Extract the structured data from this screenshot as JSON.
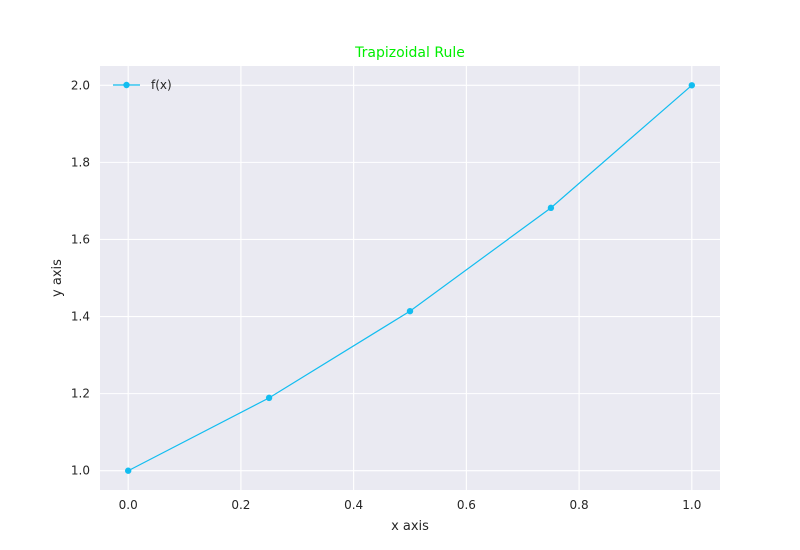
{
  "chart_data": {
    "type": "line",
    "title": "Trapizoidal Rule",
    "xlabel": "x axis",
    "ylabel": "y axis",
    "xlim": [
      -0.05,
      1.05
    ],
    "ylim": [
      0.95,
      2.05
    ],
    "xticks": [
      0.0,
      0.2,
      0.4,
      0.6,
      0.8,
      1.0
    ],
    "xtick_labels": [
      "0.0",
      "0.2",
      "0.4",
      "0.6",
      "0.8",
      "1.0"
    ],
    "yticks": [
      1.0,
      1.2,
      1.4,
      1.6,
      1.8,
      2.0
    ],
    "ytick_labels": [
      "1.0",
      "1.2",
      "1.4",
      "1.6",
      "1.8",
      "2.0"
    ],
    "grid": true,
    "legend_position": "top-left",
    "series": [
      {
        "name": "f(x)",
        "marker": "circle",
        "x": [
          0.0,
          0.25,
          0.5,
          0.75,
          1.0
        ],
        "y": [
          1.0,
          1.189,
          1.414,
          1.682,
          2.0
        ]
      }
    ]
  },
  "colors": {
    "title": "#00ee00",
    "series": "#12bdf0",
    "plot_background": "#eaeaf2",
    "grid": "#ffffff",
    "text": "#262626"
  }
}
